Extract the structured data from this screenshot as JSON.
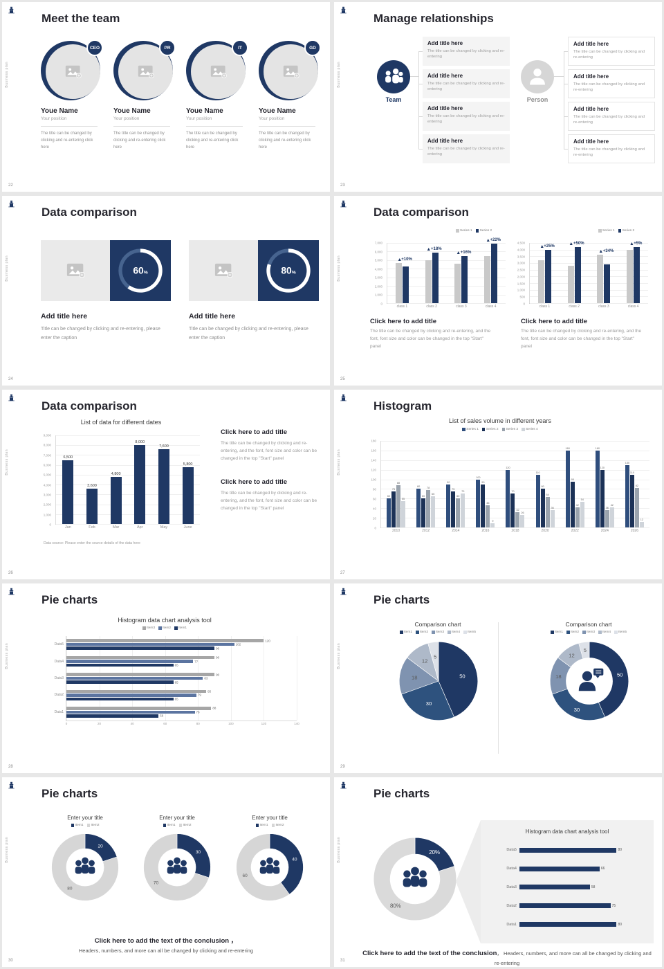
{
  "common": {
    "vertical_text": "Business plan"
  },
  "slides": {
    "s22": {
      "number": "22",
      "title": "Meet the team",
      "badges": [
        "CEO",
        "PR",
        "IT",
        "GD"
      ],
      "member_name": "Youe Name",
      "member_position": "Your position",
      "member_caption": "The title can be changed by clicking and re-entering click here"
    },
    "s23": {
      "number": "23",
      "title": "Manage relationships",
      "team_label": "Team",
      "person_label": "Person",
      "box_title": "Add title here",
      "box_caption": "The title can be changed by clicking and re-entering"
    },
    "s24": {
      "number": "24",
      "title": "Data comparison",
      "panel_title": "Add title here",
      "panel_caption": "Title can be changed by clicking and re-entering, please enter the caption"
    },
    "s25": {
      "number": "25",
      "title": "Data comparison",
      "block_title": "Click here to add title",
      "block_caption": "The title can be changed by clicking and re-entering, and the font, font size and color can be changed in the top \"Start\" panel"
    },
    "s26": {
      "number": "26",
      "title": "Data comparison",
      "block_title": "Click here to add title",
      "block_caption": "The title can be changed by clicking and re-entering, and the font, font size and color can be changed in the top \"Start\" panel"
    },
    "s27": {
      "number": "27",
      "title": "Histogram"
    },
    "s28": {
      "number": "28",
      "title": "Pie charts"
    },
    "s29": {
      "number": "29",
      "title": "Pie charts"
    },
    "s30": {
      "number": "30",
      "title": "Pie charts",
      "conclusion_bold": "Click here to add the text of the conclusion ，",
      "conclusion_rest": "Headers, numbers, and more can all be changed by clicking and re-entering"
    },
    "s31": {
      "number": "31",
      "title": "Pie charts",
      "conclusion_bold": "Click here to add the text of the conclusion",
      "conclusion_rest": "， Headers, numbers, and more can all be changed by clicking and re-entering"
    }
  },
  "chart_data": [
    {
      "id": "percent-donut-60",
      "type": "donut",
      "values": [
        60,
        40
      ],
      "colors": [
        "#ffffff",
        "#47648f"
      ],
      "outer": 0.72,
      "inner": 0.6,
      "no_stroke": true,
      "center_label": "60",
      "center_unit": "%"
    },
    {
      "id": "percent-donut-80",
      "type": "donut",
      "values": [
        80,
        20
      ],
      "colors": [
        "#ffffff",
        "#47648f"
      ],
      "outer": 0.72,
      "inner": 0.6,
      "no_stroke": true,
      "center_label": "80",
      "center_unit": "%"
    },
    {
      "id": "comparison-bars-left",
      "type": "bar",
      "categories": [
        "class 1",
        "class 2",
        "class 3",
        "class 4"
      ],
      "legend": [
        "Series 1",
        "Series 2"
      ],
      "colors": [
        "#c9c9c9",
        "#1f3864"
      ],
      "series": [
        {
          "name": "Series 1",
          "values": [
            4700,
            5000,
            4600,
            5500
          ]
        },
        {
          "name": "Series 2",
          "values": [
            4300,
            5900,
            5500,
            6900
          ]
        }
      ],
      "annotations": [
        "+10%",
        "+18%",
        "+16%",
        "+22%"
      ],
      "ylim": [
        0,
        7000
      ],
      "yticks": [
        "7,000",
        "6,000",
        "5,000",
        "4,000",
        "3,000",
        "2,000",
        "1,000",
        "0"
      ]
    },
    {
      "id": "comparison-bars-right",
      "type": "bar",
      "categories": [
        "class 1",
        "class 2",
        "class 3",
        "class 4"
      ],
      "legend": [
        "Series 1",
        "Series 2"
      ],
      "colors": [
        "#c9c9c9",
        "#1f3864"
      ],
      "series": [
        {
          "name": "Series 1",
          "values": [
            3200,
            2800,
            3600,
            4000
          ]
        },
        {
          "name": "Series 2",
          "values": [
            4000,
            4200,
            2900,
            4200
          ]
        }
      ],
      "annotations": [
        "+25%",
        "+50%",
        "+34%",
        "+5%"
      ],
      "ylim": [
        0,
        4500
      ],
      "yticks": [
        "4,500",
        "4,000",
        "3,500",
        "3,000",
        "2,500",
        "2,000",
        "1,500",
        "1,000",
        "500",
        "0"
      ]
    },
    {
      "id": "dates-bars",
      "type": "bar",
      "title": "List of data for different dates",
      "source": "Data source: Please enter the source details of the data here",
      "categories": [
        "Jan",
        "Feb",
        "Mar",
        "Apr",
        "May",
        "June"
      ],
      "colors": [
        "#1f3864"
      ],
      "series": [
        {
          "name": "Data",
          "values": [
            6500,
            3600,
            4800,
            8000,
            7600,
            5800
          ],
          "labels": [
            "6,500",
            "3,600",
            "4,800",
            "8,000",
            "7,600",
            "5,800"
          ]
        }
      ],
      "ylim": [
        0,
        9000
      ],
      "yticks": [
        "9,000",
        "8,000",
        "7,000",
        "6,000",
        "5,000",
        "4,000",
        "3,000",
        "2,000",
        "1,000",
        "0"
      ]
    },
    {
      "id": "sales-histogram",
      "type": "bar",
      "title": "List of sales volume in different years",
      "categories": [
        "2010",
        "2012",
        "2014",
        "2016",
        "2018",
        "2020",
        "2022",
        "2024",
        "2026"
      ],
      "legend": [
        "Series 1",
        "Series 2",
        "Series 3",
        "Series 4"
      ],
      "colors": [
        "#2f4e7d",
        "#1c3257",
        "#9aa3ad",
        "#cfd4da"
      ],
      "show_values": true,
      "series": [
        {
          "name": "Series 1",
          "values": [
            60,
            80,
            90,
            100,
            120,
            110,
            160,
            160,
            130
          ]
        },
        {
          "name": "Series 2",
          "values": [
            75,
            60,
            75,
            90,
            70,
            80,
            95,
            120,
            110
          ]
        },
        {
          "name": "Series 3",
          "values": [
            88,
            78,
            60,
            46,
            32,
            64,
            42,
            36,
            82
          ]
        },
        {
          "name": "Series 4",
          "values": [
            55,
            65,
            70,
            9,
            26,
            36,
            54,
            42,
            12
          ]
        }
      ],
      "ylim": [
        0,
        180
      ],
      "yticks": [
        "180",
        "160",
        "140",
        "120",
        "100",
        "80",
        "60",
        "40",
        "20",
        "0"
      ]
    },
    {
      "id": "histogram-analysis",
      "type": "hbar",
      "title": "Histogram data chart analysis tool",
      "legend": [
        "Item3",
        "Item2",
        "Item1"
      ],
      "colors": [
        "#a6a6a6",
        "#5b74a0",
        "#1f3864"
      ],
      "categories": [
        "Data5",
        "Data4",
        "Data3",
        "Data2",
        "Data1"
      ],
      "series": [
        {
          "name": "Item3",
          "values": [
            120,
            90,
            90,
            85,
            88
          ]
        },
        {
          "name": "Item2",
          "values": [
            102,
            77,
            83,
            79,
            78
          ]
        },
        {
          "name": "Item1",
          "values": [
            90,
            65,
            65,
            65,
            56
          ]
        }
      ],
      "xlim": [
        0,
        140
      ],
      "xticks": [
        "0",
        "20",
        "40",
        "60",
        "80",
        "100",
        "120",
        "140"
      ],
      "show_values": true
    },
    {
      "id": "comparison-pie",
      "type": "pie",
      "title": "Comparison chart",
      "legend": [
        "Item1",
        "Item2",
        "Item3",
        "Item4",
        "Item5"
      ],
      "colors": [
        "#1f3864",
        "#2e527e",
        "#7f93b0",
        "#aeb9c9",
        "#dde1e8"
      ],
      "values": [
        50,
        30,
        18,
        12,
        5
      ],
      "show_values": true,
      "outer": 0.93
    },
    {
      "id": "comparison-donut",
      "type": "donut",
      "title": "Comparison chart",
      "legend": [
        "Item1",
        "Item2",
        "Item3",
        "Item4",
        "Item5"
      ],
      "colors": [
        "#1f3864",
        "#2e527e",
        "#7f93b0",
        "#aeb9c9",
        "#dde1e8"
      ],
      "values": [
        50,
        30,
        18,
        12,
        5
      ],
      "show_values": true,
      "outer": 0.93,
      "inner": 0.55,
      "center_icon": "person-chat",
      "icon_color": "#1f3864"
    },
    {
      "id": "donut-20-80",
      "type": "donut",
      "title": "Enter your title",
      "legend": [
        "Item1",
        "Item2"
      ],
      "colors": [
        "#1f3864",
        "#d6d6d6"
      ],
      "values": [
        20,
        80
      ],
      "show_values": true,
      "outer": 0.93,
      "inner": 0.52,
      "center_icon": "people",
      "icon_color": "#1f3864"
    },
    {
      "id": "donut-30-70",
      "type": "donut",
      "title": "Enter your title",
      "legend": [
        "Item1",
        "Item2"
      ],
      "colors": [
        "#1f3864",
        "#d6d6d6"
      ],
      "values": [
        30,
        70
      ],
      "show_values": true,
      "outer": 0.93,
      "inner": 0.52,
      "center_icon": "people",
      "icon_color": "#1f3864"
    },
    {
      "id": "donut-40-60",
      "type": "donut",
      "title": "Enter your title",
      "legend": [
        "Item1",
        "Item2"
      ],
      "colors": [
        "#1f3864",
        "#d6d6d6"
      ],
      "values": [
        40,
        60
      ],
      "show_values": true,
      "outer": 0.93,
      "inner": 0.52,
      "center_icon": "people",
      "icon_color": "#1f3864"
    },
    {
      "id": "donut-20-80-percent",
      "type": "donut",
      "colors": [
        "#1f3864",
        "#dadada"
      ],
      "values": [
        20,
        80
      ],
      "labels": [
        "20%",
        "80%"
      ],
      "outer": 0.95,
      "inner": 0.57,
      "center_icon": "people",
      "icon_color": "#1f3864"
    },
    {
      "id": "analysis-bars",
      "type": "hbar",
      "title": "Histogram data chart analysis tool",
      "colors": [
        "#1f3864"
      ],
      "categories": [
        "Data5",
        "Data4",
        "Data3",
        "Data2",
        "Data1"
      ],
      "series": [
        {
          "name": "Data",
          "values": [
            80,
            66,
            58,
            75,
            80
          ]
        }
      ],
      "xlim": [
        0,
        90
      ],
      "show_values": true
    }
  ]
}
